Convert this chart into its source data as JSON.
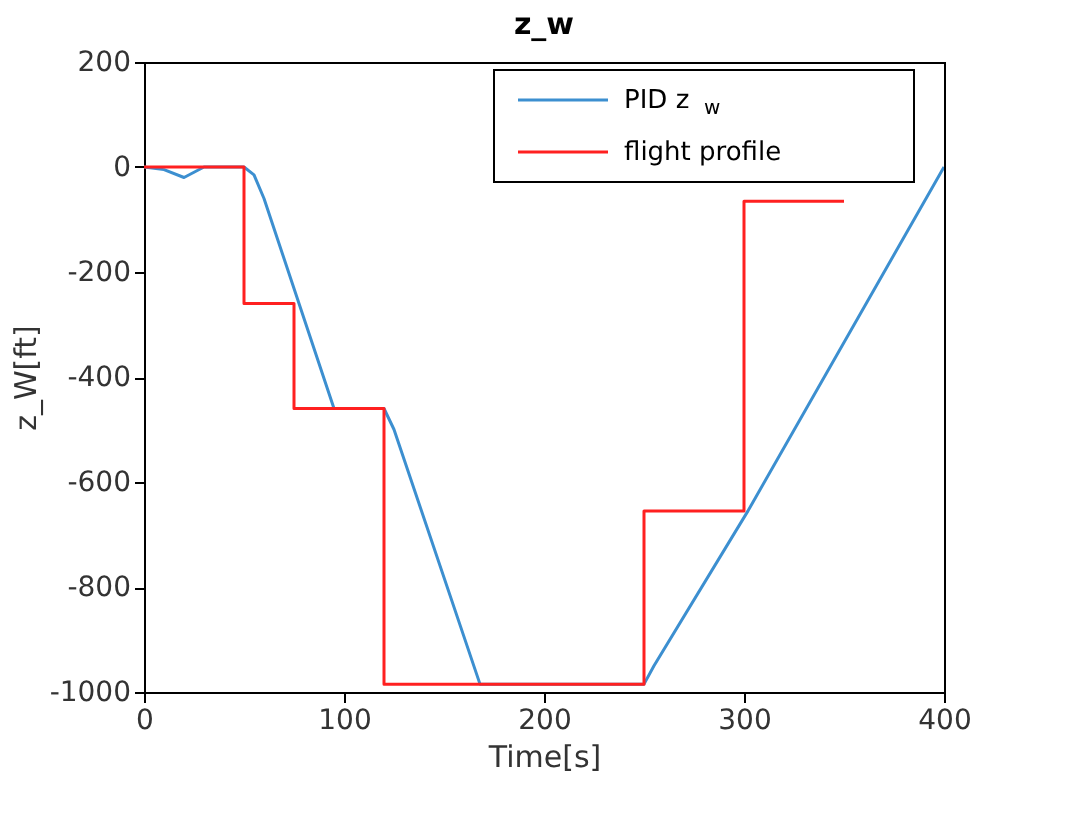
{
  "chart_data": {
    "type": "line",
    "title": "z_w",
    "xlabel": "Time[s]",
    "ylabel": "z_W[ft]",
    "xlim": [
      0,
      400
    ],
    "xticks": [
      0,
      100,
      200,
      300,
      400
    ],
    "ylim": [
      -1000,
      200
    ],
    "yticks": [
      -1000,
      -800,
      -600,
      -400,
      -200,
      0,
      200
    ],
    "grid": false,
    "legend": "top right",
    "series": [
      {
        "name": "PID  z$_{w}$",
        "color": "#3c8fd0",
        "x": [
          0,
          10,
          20,
          30,
          50,
          55,
          60,
          95,
          120,
          125,
          168,
          250,
          255,
          302,
          400
        ],
        "values": [
          0,
          -5,
          -20,
          0,
          0,
          -15,
          -60,
          -460,
          -460,
          -500,
          -985,
          -985,
          -950,
          -655,
          0
        ]
      },
      {
        "name": "flight profile",
        "color": "#ff2020",
        "type": "step",
        "x": [
          0,
          50,
          75,
          120,
          250,
          300,
          350
        ],
        "values": [
          0,
          -260,
          -460,
          -985,
          -655,
          -65,
          -65
        ]
      }
    ]
  }
}
